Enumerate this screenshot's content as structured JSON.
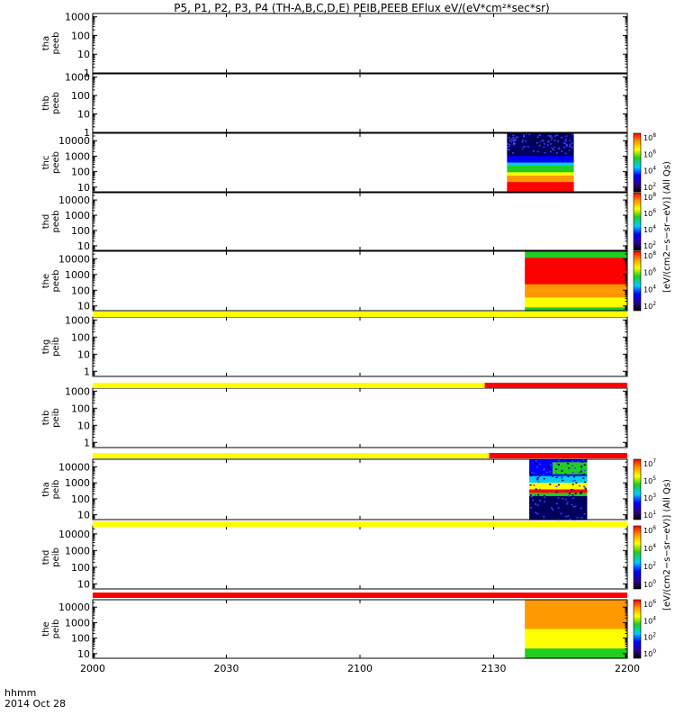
{
  "title": "P5, P1, P2, P3, P4 (TH-A,B,C,D,E) PEIB,PEEB EFlux eV/(eV*cm²*sec*sr)",
  "time_axis": {
    "label_top": "hhmm",
    "label_bottom": "2014 Oct 28",
    "ticks": [
      "2000",
      "2030",
      "2100",
      "2130",
      "2200"
    ]
  },
  "colorbar_label": "[eV/(cm2−s−sr−eV)] (All Qs)",
  "colors": {
    "yellow": "#ffff00",
    "red": "#ff0000",
    "green": "#22cc22",
    "cyan": "#00ccff",
    "blue": "#0000ff",
    "navy": "#000060",
    "orange": "#ff9900"
  },
  "chart_data": {
    "type": "heatmap",
    "x_range": [
      "20:00",
      "22:00"
    ],
    "panels": [
      {
        "probe": "tha",
        "product": "peeb",
        "yticks": [
          "1",
          "10",
          "100",
          "1000"
        ],
        "ylim": [
          1,
          1500
        ],
        "data_span": null,
        "colorbar_max_exp": null
      },
      {
        "probe": "thb",
        "product": "peeb",
        "yticks": [
          "1",
          "10",
          "100",
          "1000"
        ],
        "ylim": [
          1,
          1500
        ],
        "data_span": null,
        "colorbar_max_exp": null
      },
      {
        "probe": "thc",
        "product": "peeb",
        "yticks": [
          "10",
          "100",
          "1000",
          "10000"
        ],
        "ylim": [
          5,
          30000
        ],
        "data_span": [
          "21:33",
          "21:48"
        ],
        "colorbar_max_exp": 8
      },
      {
        "probe": "thd",
        "product": "peeb",
        "yticks": [
          "10",
          "100",
          "1000",
          "10000"
        ],
        "ylim": [
          5,
          30000
        ],
        "data_span": null,
        "colorbar_max_exp": 8
      },
      {
        "probe": "the",
        "product": "peeb",
        "yticks": [
          "10",
          "100",
          "1000",
          "10000"
        ],
        "ylim": [
          5,
          30000
        ],
        "data_span": [
          "21:37",
          "22:00"
        ],
        "colorbar_max_exp": 8
      },
      {
        "probe": "thg",
        "product": "peib",
        "yticks": [
          "1",
          "10",
          "100",
          "1000"
        ],
        "ylim": [
          0.5,
          1500
        ],
        "data_span": null,
        "colorbar_max_exp": null
      },
      {
        "probe": "thb",
        "product": "peib",
        "yticks": [
          "1",
          "10",
          "100",
          "1000"
        ],
        "ylim": [
          0.5,
          1500
        ],
        "data_span": null,
        "colorbar_max_exp": null
      },
      {
        "probe": "tha",
        "product": "peib",
        "yticks": [
          "10",
          "100",
          "1000",
          "10000"
        ],
        "ylim": [
          5,
          30000
        ],
        "data_span": [
          "21:38",
          "21:51"
        ],
        "colorbar_max_exp": 7
      },
      {
        "probe": "thd",
        "product": "peib",
        "yticks": [
          "10",
          "100",
          "1000",
          "10000"
        ],
        "ylim": [
          5,
          30000
        ],
        "data_span": null,
        "colorbar_max_exp": 6
      },
      {
        "probe": "the",
        "product": "peib",
        "yticks": [
          "10",
          "100",
          "1000",
          "10000"
        ],
        "ylim": [
          5,
          30000
        ],
        "data_span": [
          "21:37",
          "22:00"
        ],
        "colorbar_max_exp": 6
      }
    ],
    "flag_bars": [
      {
        "after_panel": 4,
        "segments": [
          {
            "from": "20:00",
            "to": "22:00",
            "color": "yellow"
          }
        ]
      },
      {
        "after_panel": 5,
        "segments": [
          {
            "from": "20:00",
            "to": "21:28",
            "color": "yellow"
          },
          {
            "from": "21:28",
            "to": "22:00",
            "color": "red"
          }
        ]
      },
      {
        "after_panel": 6,
        "segments": [
          {
            "from": "20:00",
            "to": "21:29",
            "color": "yellow"
          },
          {
            "from": "21:29",
            "to": "22:00",
            "color": "red"
          }
        ]
      },
      {
        "after_panel": 7,
        "segments": [
          {
            "from": "20:00",
            "to": "22:00",
            "color": "yellow"
          }
        ]
      },
      {
        "after_panel": 8,
        "segments": [
          {
            "from": "20:00",
            "to": "22:00",
            "color": "red"
          }
        ]
      }
    ]
  }
}
